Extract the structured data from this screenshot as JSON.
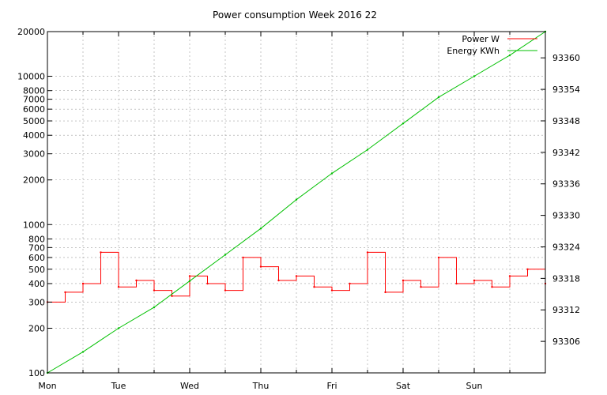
{
  "chart_data": {
    "type": "line",
    "title": "Power consumption Week 2016 22",
    "xlabel": "",
    "ylabel": "",
    "x_ticks": [
      "Mon",
      "Tue",
      "Wed",
      "Thu",
      "Fri",
      "Sat",
      "Sun"
    ],
    "x_range_days": [
      0,
      7
    ],
    "y_left": {
      "scale": "log",
      "range": [
        100,
        20000
      ],
      "ticks": [
        100,
        200,
        300,
        400,
        500,
        600,
        700,
        800,
        1000,
        2000,
        3000,
        4000,
        5000,
        6000,
        7000,
        8000,
        10000,
        20000
      ]
    },
    "y_right": {
      "scale": "linear",
      "range": [
        93300,
        93365
      ],
      "ticks": [
        93306,
        93312,
        93318,
        93324,
        93330,
        93336,
        93342,
        93348,
        93354,
        93360
      ]
    },
    "grid": true,
    "legend_position": "top-right",
    "series": [
      {
        "name": "Power W",
        "axis": "left",
        "color": "#ff0000",
        "x_days": [
          0.0,
          0.25,
          0.5,
          0.75,
          1.0,
          1.25,
          1.5,
          1.75,
          2.0,
          2.25,
          2.5,
          2.75,
          3.0,
          3.25,
          3.5,
          3.75,
          4.0,
          4.25,
          4.5,
          4.75,
          5.0,
          5.25,
          5.5,
          5.75,
          6.0,
          6.25,
          6.5,
          6.75,
          7.0
        ],
        "values": [
          300,
          350,
          400,
          650,
          380,
          420,
          360,
          330,
          450,
          400,
          360,
          600,
          520,
          420,
          450,
          380,
          360,
          400,
          650,
          350,
          420,
          380,
          600,
          400,
          420,
          380,
          450,
          500,
          400
        ]
      },
      {
        "name": "Energy KWh",
        "axis": "right",
        "color": "#00c000",
        "x_days": [
          0.0,
          0.5,
          1.0,
          1.5,
          2.0,
          2.5,
          3.0,
          3.5,
          4.0,
          4.5,
          5.0,
          5.5,
          6.0,
          6.5,
          7.0
        ],
        "values": [
          93300,
          93304,
          93308.5,
          93312.5,
          93317.5,
          93322.5,
          93327.5,
          93333,
          93338,
          93342.5,
          93347.5,
          93352.5,
          93356.5,
          93360.5,
          93365
        ]
      }
    ]
  }
}
